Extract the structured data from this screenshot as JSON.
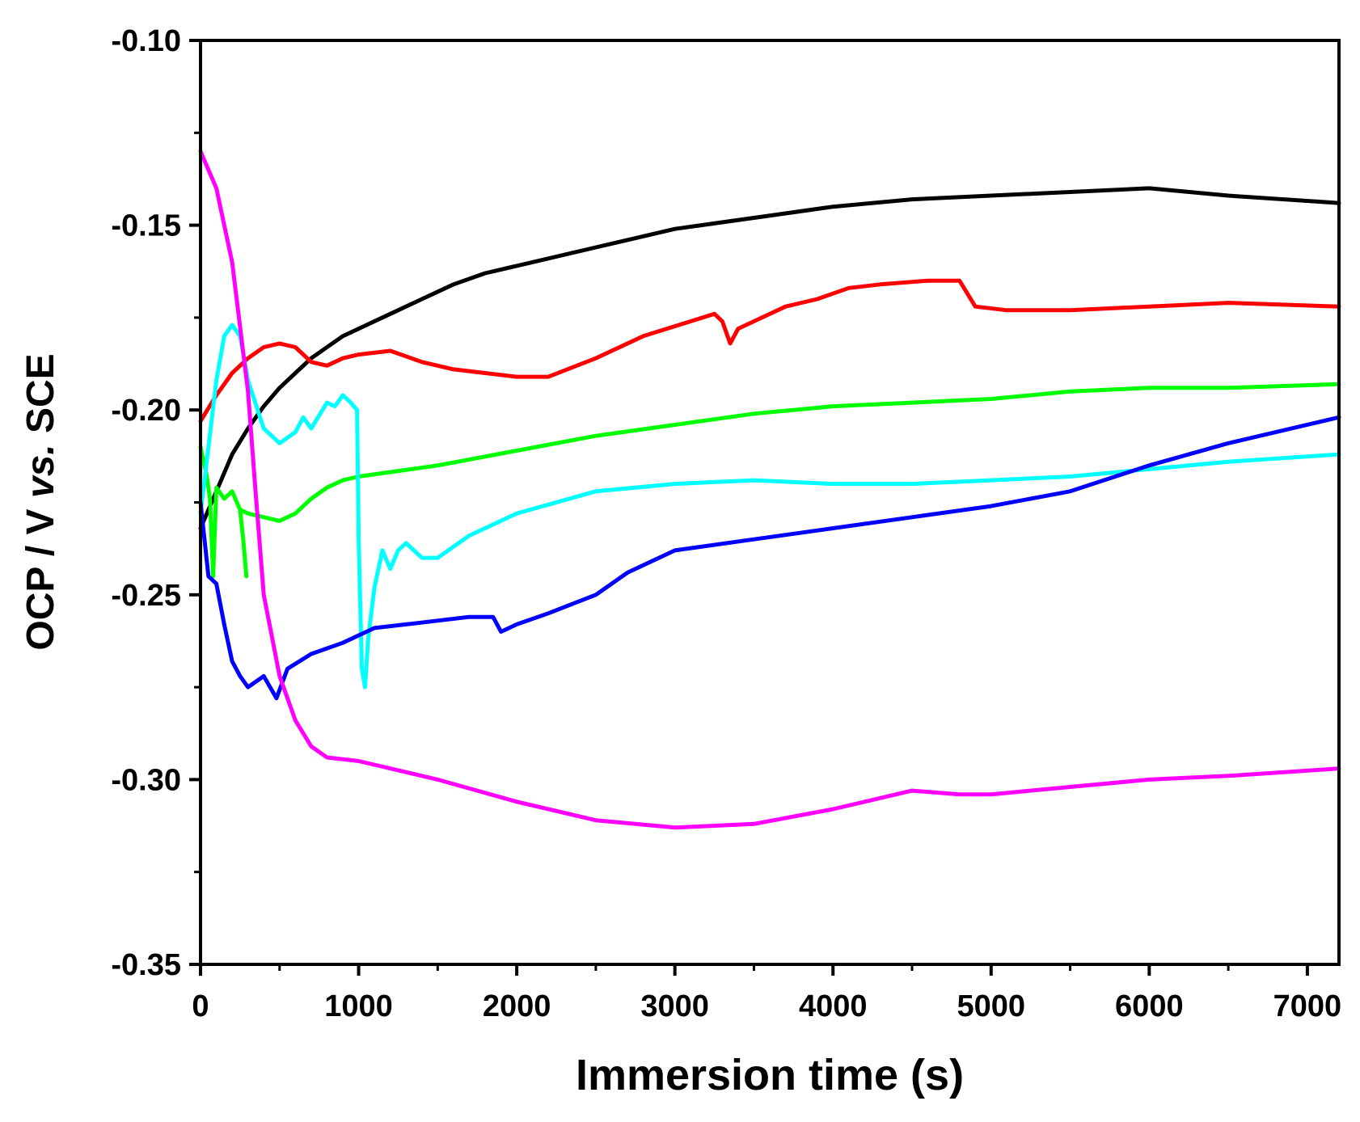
{
  "chart_data": {
    "type": "line",
    "title": "",
    "xlabel": "Immersion time (s)",
    "ylabel_parts": [
      {
        "text": "OCP / V ",
        "italic": false
      },
      {
        "text": "vs.",
        "italic": true
      },
      {
        "text": " SCE",
        "italic": false
      }
    ],
    "xlim": [
      0,
      7200
    ],
    "ylim": [
      -0.35,
      -0.1
    ],
    "xticks": [
      0,
      1000,
      2000,
      3000,
      4000,
      5000,
      6000,
      7000
    ],
    "xtick_labels": [
      "0",
      "1000",
      "2000",
      "3000",
      "4000",
      "5000",
      "6000",
      "7000"
    ],
    "yticks": [
      -0.1,
      -0.15,
      -0.2,
      -0.25,
      -0.3,
      -0.35
    ],
    "ytick_labels": [
      "-0.10",
      "-0.15",
      "-0.20",
      "-0.25",
      "-0.30",
      "-0.35"
    ],
    "grid": false,
    "legend": "none",
    "series": [
      {
        "name": "black",
        "color": "#000000",
        "points": [
          [
            0,
            -0.232
          ],
          [
            100,
            -0.222
          ],
          [
            200,
            -0.212
          ],
          [
            300,
            -0.205
          ],
          [
            400,
            -0.199
          ],
          [
            500,
            -0.194
          ],
          [
            600,
            -0.19
          ],
          [
            700,
            -0.186
          ],
          [
            800,
            -0.183
          ],
          [
            900,
            -0.18
          ],
          [
            1000,
            -0.178
          ],
          [
            1200,
            -0.174
          ],
          [
            1400,
            -0.17
          ],
          [
            1600,
            -0.166
          ],
          [
            1800,
            -0.163
          ],
          [
            2000,
            -0.161
          ],
          [
            2500,
            -0.156
          ],
          [
            3000,
            -0.151
          ],
          [
            3500,
            -0.148
          ],
          [
            4000,
            -0.145
          ],
          [
            4500,
            -0.143
          ],
          [
            5000,
            -0.142
          ],
          [
            5500,
            -0.141
          ],
          [
            6000,
            -0.14
          ],
          [
            6500,
            -0.142
          ],
          [
            7200,
            -0.144
          ]
        ]
      },
      {
        "name": "red",
        "color": "#ff0000",
        "points": [
          [
            0,
            -0.203
          ],
          [
            100,
            -0.196
          ],
          [
            200,
            -0.19
          ],
          [
            300,
            -0.186
          ],
          [
            400,
            -0.183
          ],
          [
            500,
            -0.182
          ],
          [
            600,
            -0.183
          ],
          [
            700,
            -0.187
          ],
          [
            800,
            -0.188
          ],
          [
            900,
            -0.186
          ],
          [
            1000,
            -0.185
          ],
          [
            1200,
            -0.184
          ],
          [
            1400,
            -0.187
          ],
          [
            1600,
            -0.189
          ],
          [
            1800,
            -0.19
          ],
          [
            2000,
            -0.191
          ],
          [
            2200,
            -0.191
          ],
          [
            2500,
            -0.186
          ],
          [
            2800,
            -0.18
          ],
          [
            3100,
            -0.176
          ],
          [
            3250,
            -0.174
          ],
          [
            3300,
            -0.176
          ],
          [
            3350,
            -0.182
          ],
          [
            3400,
            -0.178
          ],
          [
            3500,
            -0.176
          ],
          [
            3700,
            -0.172
          ],
          [
            3900,
            -0.17
          ],
          [
            4100,
            -0.167
          ],
          [
            4300,
            -0.166
          ],
          [
            4600,
            -0.165
          ],
          [
            4800,
            -0.165
          ],
          [
            4900,
            -0.172
          ],
          [
            5100,
            -0.173
          ],
          [
            5500,
            -0.173
          ],
          [
            6000,
            -0.172
          ],
          [
            6500,
            -0.171
          ],
          [
            7200,
            -0.172
          ]
        ]
      },
      {
        "name": "green",
        "color": "#00ff00",
        "points": [
          [
            0,
            -0.21
          ],
          [
            40,
            -0.218
          ],
          [
            60,
            -0.224
          ],
          [
            80,
            -0.245
          ],
          [
            100,
            -0.221
          ],
          [
            150,
            -0.224
          ],
          [
            200,
            -0.222
          ],
          [
            250,
            -0.227
          ],
          [
            300,
            -0.228
          ],
          [
            400,
            -0.229
          ],
          [
            500,
            -0.23
          ],
          [
            600,
            -0.228
          ],
          [
            700,
            -0.224
          ],
          [
            800,
            -0.221
          ],
          [
            900,
            -0.219
          ],
          [
            1000,
            -0.218
          ],
          [
            1500,
            -0.215
          ],
          [
            2000,
            -0.211
          ],
          [
            2500,
            -0.207
          ],
          [
            3000,
            -0.204
          ],
          [
            3500,
            -0.201
          ],
          [
            4000,
            -0.199
          ],
          [
            4500,
            -0.198
          ],
          [
            5000,
            -0.197
          ],
          [
            5500,
            -0.195
          ],
          [
            6000,
            -0.194
          ],
          [
            6500,
            -0.194
          ],
          [
            7200,
            -0.193
          ]
        ]
      },
      {
        "name": "green-short",
        "color": "#00ff00",
        "points": [
          [
            250,
            -0.227
          ],
          [
            270,
            -0.235
          ],
          [
            290,
            -0.245
          ]
        ]
      },
      {
        "name": "cyan",
        "color": "#00ffff",
        "points": [
          [
            0,
            -0.228
          ],
          [
            50,
            -0.21
          ],
          [
            100,
            -0.192
          ],
          [
            150,
            -0.18
          ],
          [
            200,
            -0.177
          ],
          [
            250,
            -0.18
          ],
          [
            300,
            -0.192
          ],
          [
            400,
            -0.205
          ],
          [
            500,
            -0.209
          ],
          [
            600,
            -0.206
          ],
          [
            650,
            -0.202
          ],
          [
            700,
            -0.205
          ],
          [
            800,
            -0.198
          ],
          [
            850,
            -0.199
          ],
          [
            900,
            -0.196
          ],
          [
            950,
            -0.198
          ],
          [
            990,
            -0.2
          ],
          [
            1000,
            -0.235
          ],
          [
            1020,
            -0.27
          ],
          [
            1040,
            -0.275
          ],
          [
            1060,
            -0.262
          ],
          [
            1100,
            -0.248
          ],
          [
            1150,
            -0.238
          ],
          [
            1200,
            -0.243
          ],
          [
            1250,
            -0.238
          ],
          [
            1300,
            -0.236
          ],
          [
            1400,
            -0.24
          ],
          [
            1500,
            -0.24
          ],
          [
            1700,
            -0.234
          ],
          [
            2000,
            -0.228
          ],
          [
            2500,
            -0.222
          ],
          [
            3000,
            -0.22
          ],
          [
            3500,
            -0.219
          ],
          [
            4000,
            -0.22
          ],
          [
            4500,
            -0.22
          ],
          [
            5000,
            -0.219
          ],
          [
            5500,
            -0.218
          ],
          [
            6000,
            -0.216
          ],
          [
            6500,
            -0.214
          ],
          [
            7200,
            -0.212
          ]
        ]
      },
      {
        "name": "blue",
        "color": "#0000ff",
        "points": [
          [
            0,
            -0.225
          ],
          [
            50,
            -0.245
          ],
          [
            100,
            -0.247
          ],
          [
            150,
            -0.258
          ],
          [
            200,
            -0.268
          ],
          [
            250,
            -0.272
          ],
          [
            300,
            -0.275
          ],
          [
            400,
            -0.272
          ],
          [
            480,
            -0.278
          ],
          [
            550,
            -0.27
          ],
          [
            700,
            -0.266
          ],
          [
            900,
            -0.263
          ],
          [
            1100,
            -0.259
          ],
          [
            1300,
            -0.258
          ],
          [
            1500,
            -0.257
          ],
          [
            1700,
            -0.256
          ],
          [
            1850,
            -0.256
          ],
          [
            1900,
            -0.26
          ],
          [
            2000,
            -0.258
          ],
          [
            2200,
            -0.255
          ],
          [
            2500,
            -0.25
          ],
          [
            2700,
            -0.244
          ],
          [
            3000,
            -0.238
          ],
          [
            3500,
            -0.235
          ],
          [
            4000,
            -0.232
          ],
          [
            4500,
            -0.229
          ],
          [
            5000,
            -0.226
          ],
          [
            5500,
            -0.222
          ],
          [
            6000,
            -0.215
          ],
          [
            6500,
            -0.209
          ],
          [
            7200,
            -0.202
          ]
        ]
      },
      {
        "name": "magenta",
        "color": "#ff00ff",
        "points": [
          [
            0,
            -0.13
          ],
          [
            100,
            -0.14
          ],
          [
            200,
            -0.16
          ],
          [
            300,
            -0.195
          ],
          [
            350,
            -0.223
          ],
          [
            400,
            -0.25
          ],
          [
            500,
            -0.272
          ],
          [
            600,
            -0.284
          ],
          [
            700,
            -0.291
          ],
          [
            800,
            -0.294
          ],
          [
            1000,
            -0.295
          ],
          [
            1500,
            -0.3
          ],
          [
            2000,
            -0.306
          ],
          [
            2500,
            -0.311
          ],
          [
            3000,
            -0.313
          ],
          [
            3500,
            -0.312
          ],
          [
            4000,
            -0.308
          ],
          [
            4500,
            -0.303
          ],
          [
            4800,
            -0.304
          ],
          [
            5000,
            -0.304
          ],
          [
            5500,
            -0.302
          ],
          [
            6000,
            -0.3
          ],
          [
            6500,
            -0.299
          ],
          [
            7200,
            -0.297
          ]
        ]
      }
    ]
  }
}
